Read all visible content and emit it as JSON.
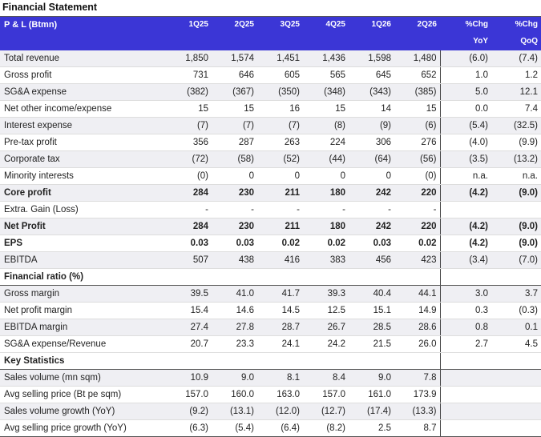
{
  "title": "Financial Statement",
  "header": {
    "label": "P & L (Btmn)",
    "periods": [
      "1Q25",
      "2Q25",
      "3Q25",
      "4Q25",
      "1Q26",
      "2Q26"
    ],
    "chg_top": [
      "%Chg",
      "%Chg"
    ],
    "chg_bottom": [
      "YoY",
      "QoQ"
    ]
  },
  "sections": [
    {
      "title": "",
      "rows": [
        {
          "label": "Total revenue",
          "values": [
            "1,850",
            "1,574",
            "1,451",
            "1,436",
            "1,598",
            "1,480"
          ],
          "chg": [
            "(6.0)",
            "(7.4)"
          ],
          "bold": false
        },
        {
          "label": "Gross profit",
          "values": [
            "731",
            "646",
            "605",
            "565",
            "645",
            "652"
          ],
          "chg": [
            "1.0",
            "1.2"
          ],
          "bold": false
        },
        {
          "label": "SG&A expense",
          "values": [
            "(382)",
            "(367)",
            "(350)",
            "(348)",
            "(343)",
            "(385)"
          ],
          "chg": [
            "5.0",
            "12.1"
          ],
          "bold": false
        },
        {
          "label": "Net other income/expense",
          "values": [
            "15",
            "15",
            "16",
            "15",
            "14",
            "15"
          ],
          "chg": [
            "0.0",
            "7.4"
          ],
          "bold": false
        },
        {
          "label": "Interest expense",
          "values": [
            "(7)",
            "(7)",
            "(7)",
            "(8)",
            "(9)",
            "(6)"
          ],
          "chg": [
            "(5.4)",
            "(32.5)"
          ],
          "bold": false
        },
        {
          "label": "Pre-tax profit",
          "values": [
            "356",
            "287",
            "263",
            "224",
            "306",
            "276"
          ],
          "chg": [
            "(4.0)",
            "(9.9)"
          ],
          "bold": false
        },
        {
          "label": "Corporate tax",
          "values": [
            "(72)",
            "(58)",
            "(52)",
            "(44)",
            "(64)",
            "(56)"
          ],
          "chg": [
            "(3.5)",
            "(13.2)"
          ],
          "bold": false
        },
        {
          "label": "Minority interests",
          "values": [
            "(0)",
            "0",
            "0",
            "0",
            "0",
            "(0)"
          ],
          "chg": [
            "n.a.",
            "n.a."
          ],
          "bold": false
        },
        {
          "label": "Core profit",
          "values": [
            "284",
            "230",
            "211",
            "180",
            "242",
            "220"
          ],
          "chg": [
            "(4.2)",
            "(9.0)"
          ],
          "bold": true
        },
        {
          "label": "Extra. Gain (Loss)",
          "values": [
            "-",
            "-",
            "-",
            "-",
            "-",
            "-"
          ],
          "chg": [
            "",
            ""
          ],
          "bold": false
        },
        {
          "label": "Net Profit",
          "values": [
            "284",
            "230",
            "211",
            "180",
            "242",
            "220"
          ],
          "chg": [
            "(4.2)",
            "(9.0)"
          ],
          "bold": true
        },
        {
          "label": "EPS",
          "values": [
            "0.03",
            "0.03",
            "0.02",
            "0.02",
            "0.03",
            "0.02"
          ],
          "chg": [
            "(4.2)",
            "(9.0)"
          ],
          "bold": true
        },
        {
          "label": "EBITDA",
          "values": [
            "507",
            "438",
            "416",
            "383",
            "456",
            "423"
          ],
          "chg": [
            "(3.4)",
            "(7.0)"
          ],
          "bold": false
        }
      ]
    },
    {
      "title": "Financial ratio (%)",
      "rows": [
        {
          "label": "Gross margin",
          "values": [
            "39.5",
            "41.0",
            "41.7",
            "39.3",
            "40.4",
            "44.1"
          ],
          "chg": [
            "3.0",
            "3.7"
          ],
          "bold": false
        },
        {
          "label": "Net profit margin",
          "values": [
            "15.4",
            "14.6",
            "14.5",
            "12.5",
            "15.1",
            "14.9"
          ],
          "chg": [
            "0.3",
            "(0.3)"
          ],
          "bold": false
        },
        {
          "label": "EBITDA margin",
          "values": [
            "27.4",
            "27.8",
            "28.7",
            "26.7",
            "28.5",
            "28.6"
          ],
          "chg": [
            "0.8",
            "0.1"
          ],
          "bold": false
        },
        {
          "label": "SG&A expense/Revenue",
          "values": [
            "20.7",
            "23.3",
            "24.1",
            "24.2",
            "21.5",
            "26.0"
          ],
          "chg": [
            "2.7",
            "4.5"
          ],
          "bold": false
        }
      ]
    },
    {
      "title": "Key Statistics",
      "rows": [
        {
          "label": "Sales volume (mn sqm)",
          "values": [
            "10.9",
            "9.0",
            "8.1",
            "8.4",
            "9.0",
            "7.8"
          ],
          "chg": [
            "",
            ""
          ],
          "bold": false
        },
        {
          "label": "Avg selling price (Bt pe sqm)",
          "values": [
            "157.0",
            "160.0",
            "163.0",
            "157.0",
            "161.0",
            "173.9"
          ],
          "chg": [
            "",
            ""
          ],
          "bold": false
        },
        {
          "label": "Sales volume growth (YoY)",
          "values": [
            "(9.2)",
            "(13.1)",
            "(12.0)",
            "(12.7)",
            "(17.4)",
            "(13.3)"
          ],
          "chg": [
            "",
            ""
          ],
          "bold": false
        },
        {
          "label": "Avg selling price growth (YoY)",
          "values": [
            "(6.3)",
            "(5.4)",
            "(6.4)",
            "(8.2)",
            "2.5",
            "8.7"
          ],
          "chg": [
            "",
            ""
          ],
          "bold": false
        }
      ]
    }
  ]
}
